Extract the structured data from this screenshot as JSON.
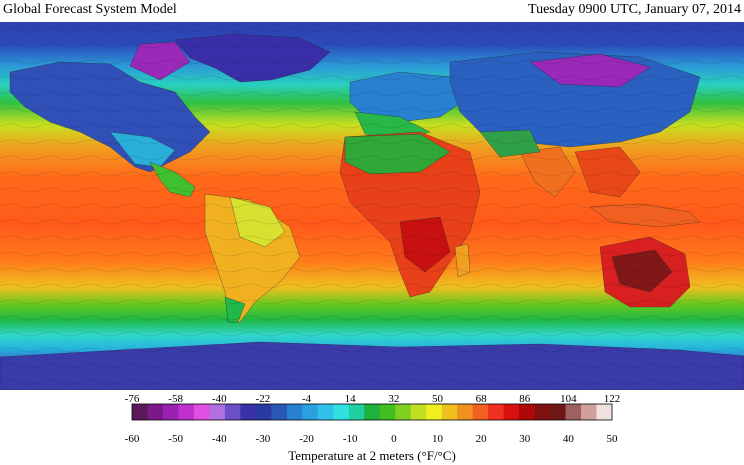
{
  "header": {
    "title": "Global Forecast System Model",
    "timestamp": "Tuesday 0900 UTC, January 07, 2014"
  },
  "legend": {
    "label": "Temperature at 2 meters (°F/°C)",
    "fahrenheit_ticks": [
      "-76",
      "-58",
      "-40",
      "-22",
      "-4",
      "14",
      "32",
      "50",
      "68",
      "86",
      "104",
      "122"
    ],
    "celsius_ticks": [
      "-60",
      "-50",
      "-40",
      "-30",
      "-20",
      "-10",
      "0",
      "10",
      "20",
      "30",
      "40",
      "50"
    ],
    "colors": [
      "#5a1a5a",
      "#7a1a8a",
      "#9a22b0",
      "#c030d0",
      "#e050e0",
      "#b070e0",
      "#6a50c8",
      "#3a30a8",
      "#2a3aa0",
      "#2a58b8",
      "#2a80d0",
      "#2aa0e0",
      "#30c0e8",
      "#30e0e0",
      "#20d0a0",
      "#20b040",
      "#40c020",
      "#80d020",
      "#c0e020",
      "#f0f020",
      "#f0c020",
      "#f09020",
      "#f06020",
      "#f03020",
      "#d81010",
      "#b00808",
      "#801010",
      "#701818",
      "#a06060",
      "#d0a0a0",
      "#f0e0e0"
    ]
  },
  "map": {
    "colors": {
      "polar": "#2c3aa8",
      "cold": "#2a7ac8",
      "cool": "#28d0d8",
      "mild": "#1ebf4a",
      "warm": "#d8e020",
      "hot": "#ff7a1a",
      "very_hot": "#e83818",
      "extreme": "#801818",
      "arctic": "#9a28b8"
    }
  }
}
